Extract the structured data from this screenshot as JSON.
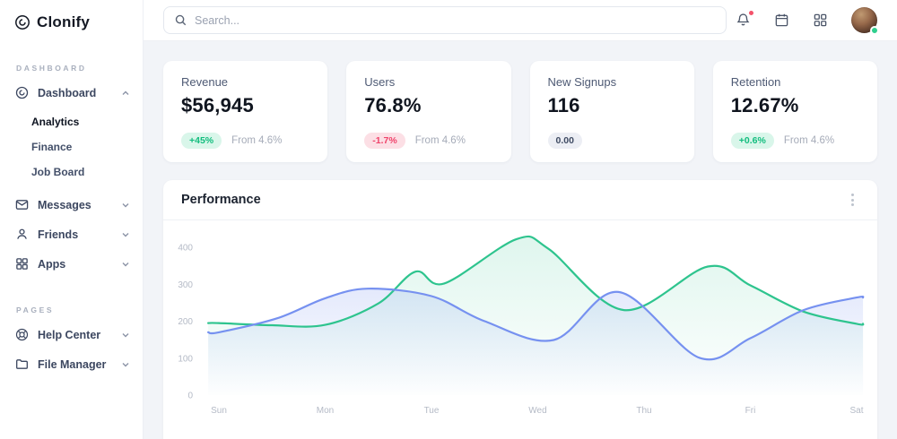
{
  "brand": {
    "name": "Clonify"
  },
  "topbar": {
    "search_placeholder": "Search...",
    "icons": [
      "search-icon",
      "bell-icon",
      "calendar-icon",
      "apps-grid-icon",
      "avatar"
    ],
    "bell_has_notification_dot": true,
    "avatar_status": "online"
  },
  "sidebar": {
    "sections": [
      {
        "label": "DASHBOARD",
        "items": [
          {
            "label": "Dashboard",
            "icon": "disc-icon",
            "state": "expanded",
            "children": [
              {
                "label": "Analytics",
                "active": true
              },
              {
                "label": "Finance",
                "active": false
              },
              {
                "label": "Job Board",
                "active": false
              }
            ]
          },
          {
            "label": "Messages",
            "icon": "mail-icon",
            "state": "collapsed"
          },
          {
            "label": "Friends",
            "icon": "user-icon",
            "state": "collapsed"
          },
          {
            "label": "Apps",
            "icon": "apps-grid-icon",
            "state": "collapsed"
          }
        ]
      },
      {
        "label": "PAGES",
        "items": [
          {
            "label": "Help Center",
            "icon": "life-buoy-icon",
            "state": "collapsed"
          },
          {
            "label": "File Manager",
            "icon": "folder-icon",
            "state": "collapsed"
          }
        ]
      }
    ]
  },
  "stats": [
    {
      "label": "Revenue",
      "value": "$56,945",
      "badge": "+45%",
      "badge_type": "up",
      "note": "From 4.6%"
    },
    {
      "label": "Users",
      "value": "76.8%",
      "badge": "-1.7%",
      "badge_type": "down",
      "note": "From 4.6%"
    },
    {
      "label": "New Signups",
      "value": "116",
      "badge": "0.00",
      "badge_type": "neutral",
      "note": ""
    },
    {
      "label": "Retention",
      "value": "12.67%",
      "badge": "+0.6%",
      "badge_type": "up",
      "note": "From 4.6%"
    }
  ],
  "performance": {
    "title": "Performance"
  },
  "chart_data": {
    "type": "area",
    "title": "Performance",
    "categories": [
      "Sun",
      "Mon",
      "Tue",
      "Wed",
      "Thu",
      "Fri",
      "Sat"
    ],
    "y_ticks": [
      0,
      100,
      200,
      300,
      400
    ],
    "ylim": [
      0,
      440
    ],
    "x_unit": "day index, 0=Sun … 6=Sat (fractional values are intra-day readings)",
    "grid": false,
    "legend": false,
    "series": [
      {
        "name": "series-green",
        "color": "#2ec48e",
        "fill_opacity_top": 0.15,
        "points": [
          [
            0,
            195
          ],
          [
            0.5,
            189
          ],
          [
            1,
            190
          ],
          [
            1.5,
            248
          ],
          [
            1.85,
            334
          ],
          [
            2.12,
            302
          ],
          [
            2.8,
            422
          ],
          [
            3.1,
            396
          ],
          [
            3.81,
            230
          ],
          [
            4.6,
            348
          ],
          [
            5,
            297
          ],
          [
            5.5,
            226
          ],
          [
            6,
            193
          ]
        ]
      },
      {
        "name": "series-blue",
        "color": "#7691f0",
        "fill_opacity_top": 0.28,
        "points": [
          [
            0,
            170
          ],
          [
            0.55,
            208
          ],
          [
            1,
            262
          ],
          [
            1.4,
            288
          ],
          [
            2,
            268
          ],
          [
            2.5,
            200
          ],
          [
            3.15,
            149
          ],
          [
            3.76,
            279
          ],
          [
            4.52,
            101
          ],
          [
            5,
            154
          ],
          [
            5.5,
            230
          ],
          [
            6,
            264
          ]
        ]
      }
    ]
  },
  "colors": {
    "page_bg": "#f2f4f8",
    "card_bg": "#ffffff",
    "accent_green": "#2ec48e",
    "accent_blue": "#7691f0",
    "badge_up_bg": "#d9f6ea",
    "badge_up_text": "#12bd7e",
    "badge_down_bg": "#fcdfe5",
    "badge_down_text": "#f0436b",
    "badge_neutral_bg": "#eceef4",
    "badge_neutral_text": "#3f4b63",
    "notification_dot": "#f4526a",
    "online_dot": "#2fcf8e",
    "axis_label": "#b4bac6"
  }
}
